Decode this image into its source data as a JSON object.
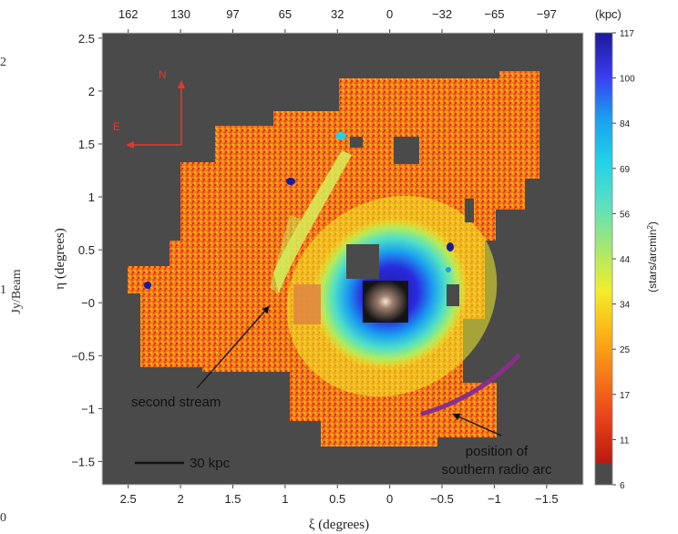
{
  "chart_data": {
    "type": "heatmap",
    "xlabel": "ξ (degrees)",
    "ylabel": "η (degrees)",
    "xlim": [
      2.75,
      -1.85
    ],
    "ylim": [
      -1.72,
      2.55
    ],
    "x_ticks": [
      "2.5",
      "2",
      "1.5",
      "1",
      "0.5",
      "0",
      "−0.5",
      "−1",
      "−1.5"
    ],
    "x_tick_values": [
      2.5,
      2,
      1.5,
      1,
      0.5,
      0,
      -0.5,
      -1,
      -1.5
    ],
    "y_ticks": [
      "2.5",
      "2",
      "1.5",
      "1",
      "0.5",
      "−0",
      "−0.5",
      "−1",
      "−1.5"
    ],
    "y_tick_values": [
      2.5,
      2,
      1.5,
      1,
      0.5,
      0,
      -0.5,
      -1,
      -1.5
    ],
    "top_axis_label": "(kpc)",
    "top_ticks": [
      "162",
      "130",
      "97",
      "65",
      "32",
      "0",
      "−32",
      "−65",
      "−97"
    ],
    "top_tick_values": [
      2.5,
      2,
      1.5,
      1,
      0.5,
      0,
      -0.5,
      -1,
      -1.5
    ],
    "colorbar": {
      "title_main": "(stars/arcmin",
      "title_sup": "2",
      "title_end": ")",
      "ticks": [
        "117",
        "100",
        "84",
        "69",
        "56",
        "44",
        "34",
        "25",
        "17",
        "11",
        "6"
      ],
      "colors": [
        "#1a1a9a",
        "#3b3bf0",
        "#1aa0f0",
        "#22d2e8",
        "#5be0c0",
        "#a6e870",
        "#f2ee2a",
        "#fbb316",
        "#f5781a",
        "#e8401a",
        "#b81a10"
      ],
      "na_color": "#4a4a4a"
    },
    "annotations": [
      {
        "text": "second stream",
        "arrow_to": [
          1.15,
          -0.03
        ]
      },
      {
        "text": "position of",
        "text2": "southern radio arc",
        "arrow_to": [
          -0.6,
          -1.05
        ]
      }
    ],
    "scale_bar": {
      "label": "30 kpc",
      "degrees": 0.47
    },
    "compass": {
      "north": "N",
      "east": "E"
    },
    "radio_arc": {
      "color": "#8a2e8c",
      "center": [
        0.25,
        0.9
      ],
      "radius_deg": 2.05,
      "from_deg": -44,
      "to_deg": -74
    }
  },
  "side_labels": {
    "jy_beam": "Jy/Beam",
    "tick_2": "2",
    "tick_1": "1",
    "tick_0": "0"
  }
}
